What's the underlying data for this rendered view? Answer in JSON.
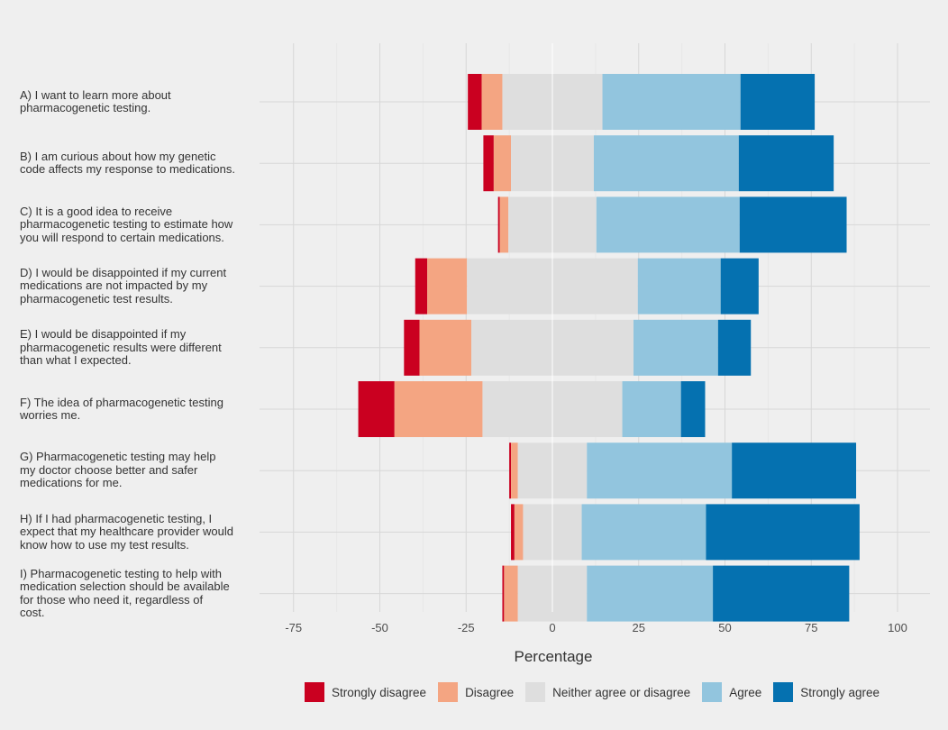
{
  "chart_data": {
    "type": "bar",
    "orientation": "horizontal",
    "stacked": "diverging",
    "title": "",
    "xlabel": "Percentage",
    "ylabel": "",
    "xlim": [
      -85,
      105
    ],
    "xticks": [
      -75,
      -50,
      -25,
      0,
      25,
      50,
      75,
      100
    ],
    "xtick_labels": [
      "-75",
      "-50",
      "-25",
      "0",
      "25",
      "50",
      "75",
      "100"
    ],
    "grid": true,
    "legend_position": "bottom",
    "categories": [
      "A) I want to learn more about\npharmacogenetic testing.",
      "B) I am curious about how my genetic\ncode affects my response to medications.",
      "C) It is a good idea to receive\npharmacogenetic testing to estimate how\nyou will respond to certain medications.",
      "D) I would be disappointed if my current\nmedications are not impacted by my\npharmacogenetic test results.",
      "E) I would be disappointed if my\npharmacogenetic results were different\nthan what I expected.",
      "F) The idea of pharmacogenetic testing\nworries me.",
      "G) Pharmacogenetic testing may help\nmy doctor choose better and safer\nmedications for me.",
      "H) If I had pharmacogenetic testing, I\nexpect that my healthcare provider would\nknow how to use my test results.",
      "I) Pharmacogenetic testing to help with\nmedication selection should be available\nfor those who need it, regardless of\ncost."
    ],
    "series": [
      {
        "name": "Strongly disagree",
        "color": "#ca0020",
        "side": "negative",
        "values": [
          4,
          3,
          0.5,
          3.5,
          4.5,
          10.5,
          0.5,
          1,
          0.5
        ]
      },
      {
        "name": "Disagree",
        "color": "#f4a582",
        "side": "negative",
        "values": [
          6,
          5,
          2.5,
          11.5,
          15,
          25.5,
          2,
          2.5,
          4
        ]
      },
      {
        "name": "Neither agree or disagree",
        "color": "#dedede",
        "side": "split",
        "values": [
          29,
          24,
          25.5,
          49.5,
          47,
          40.5,
          20,
          17,
          20
        ]
      },
      {
        "name": "Agree",
        "color": "#92c5de",
        "side": "positive",
        "values": [
          40,
          42,
          41.5,
          24,
          24.5,
          17,
          42,
          36,
          36.5
        ]
      },
      {
        "name": "Strongly agree",
        "color": "#0571b0",
        "side": "positive",
        "values": [
          21.5,
          27.5,
          31,
          11,
          9.5,
          7,
          36,
          44.5,
          39.5
        ]
      }
    ]
  }
}
